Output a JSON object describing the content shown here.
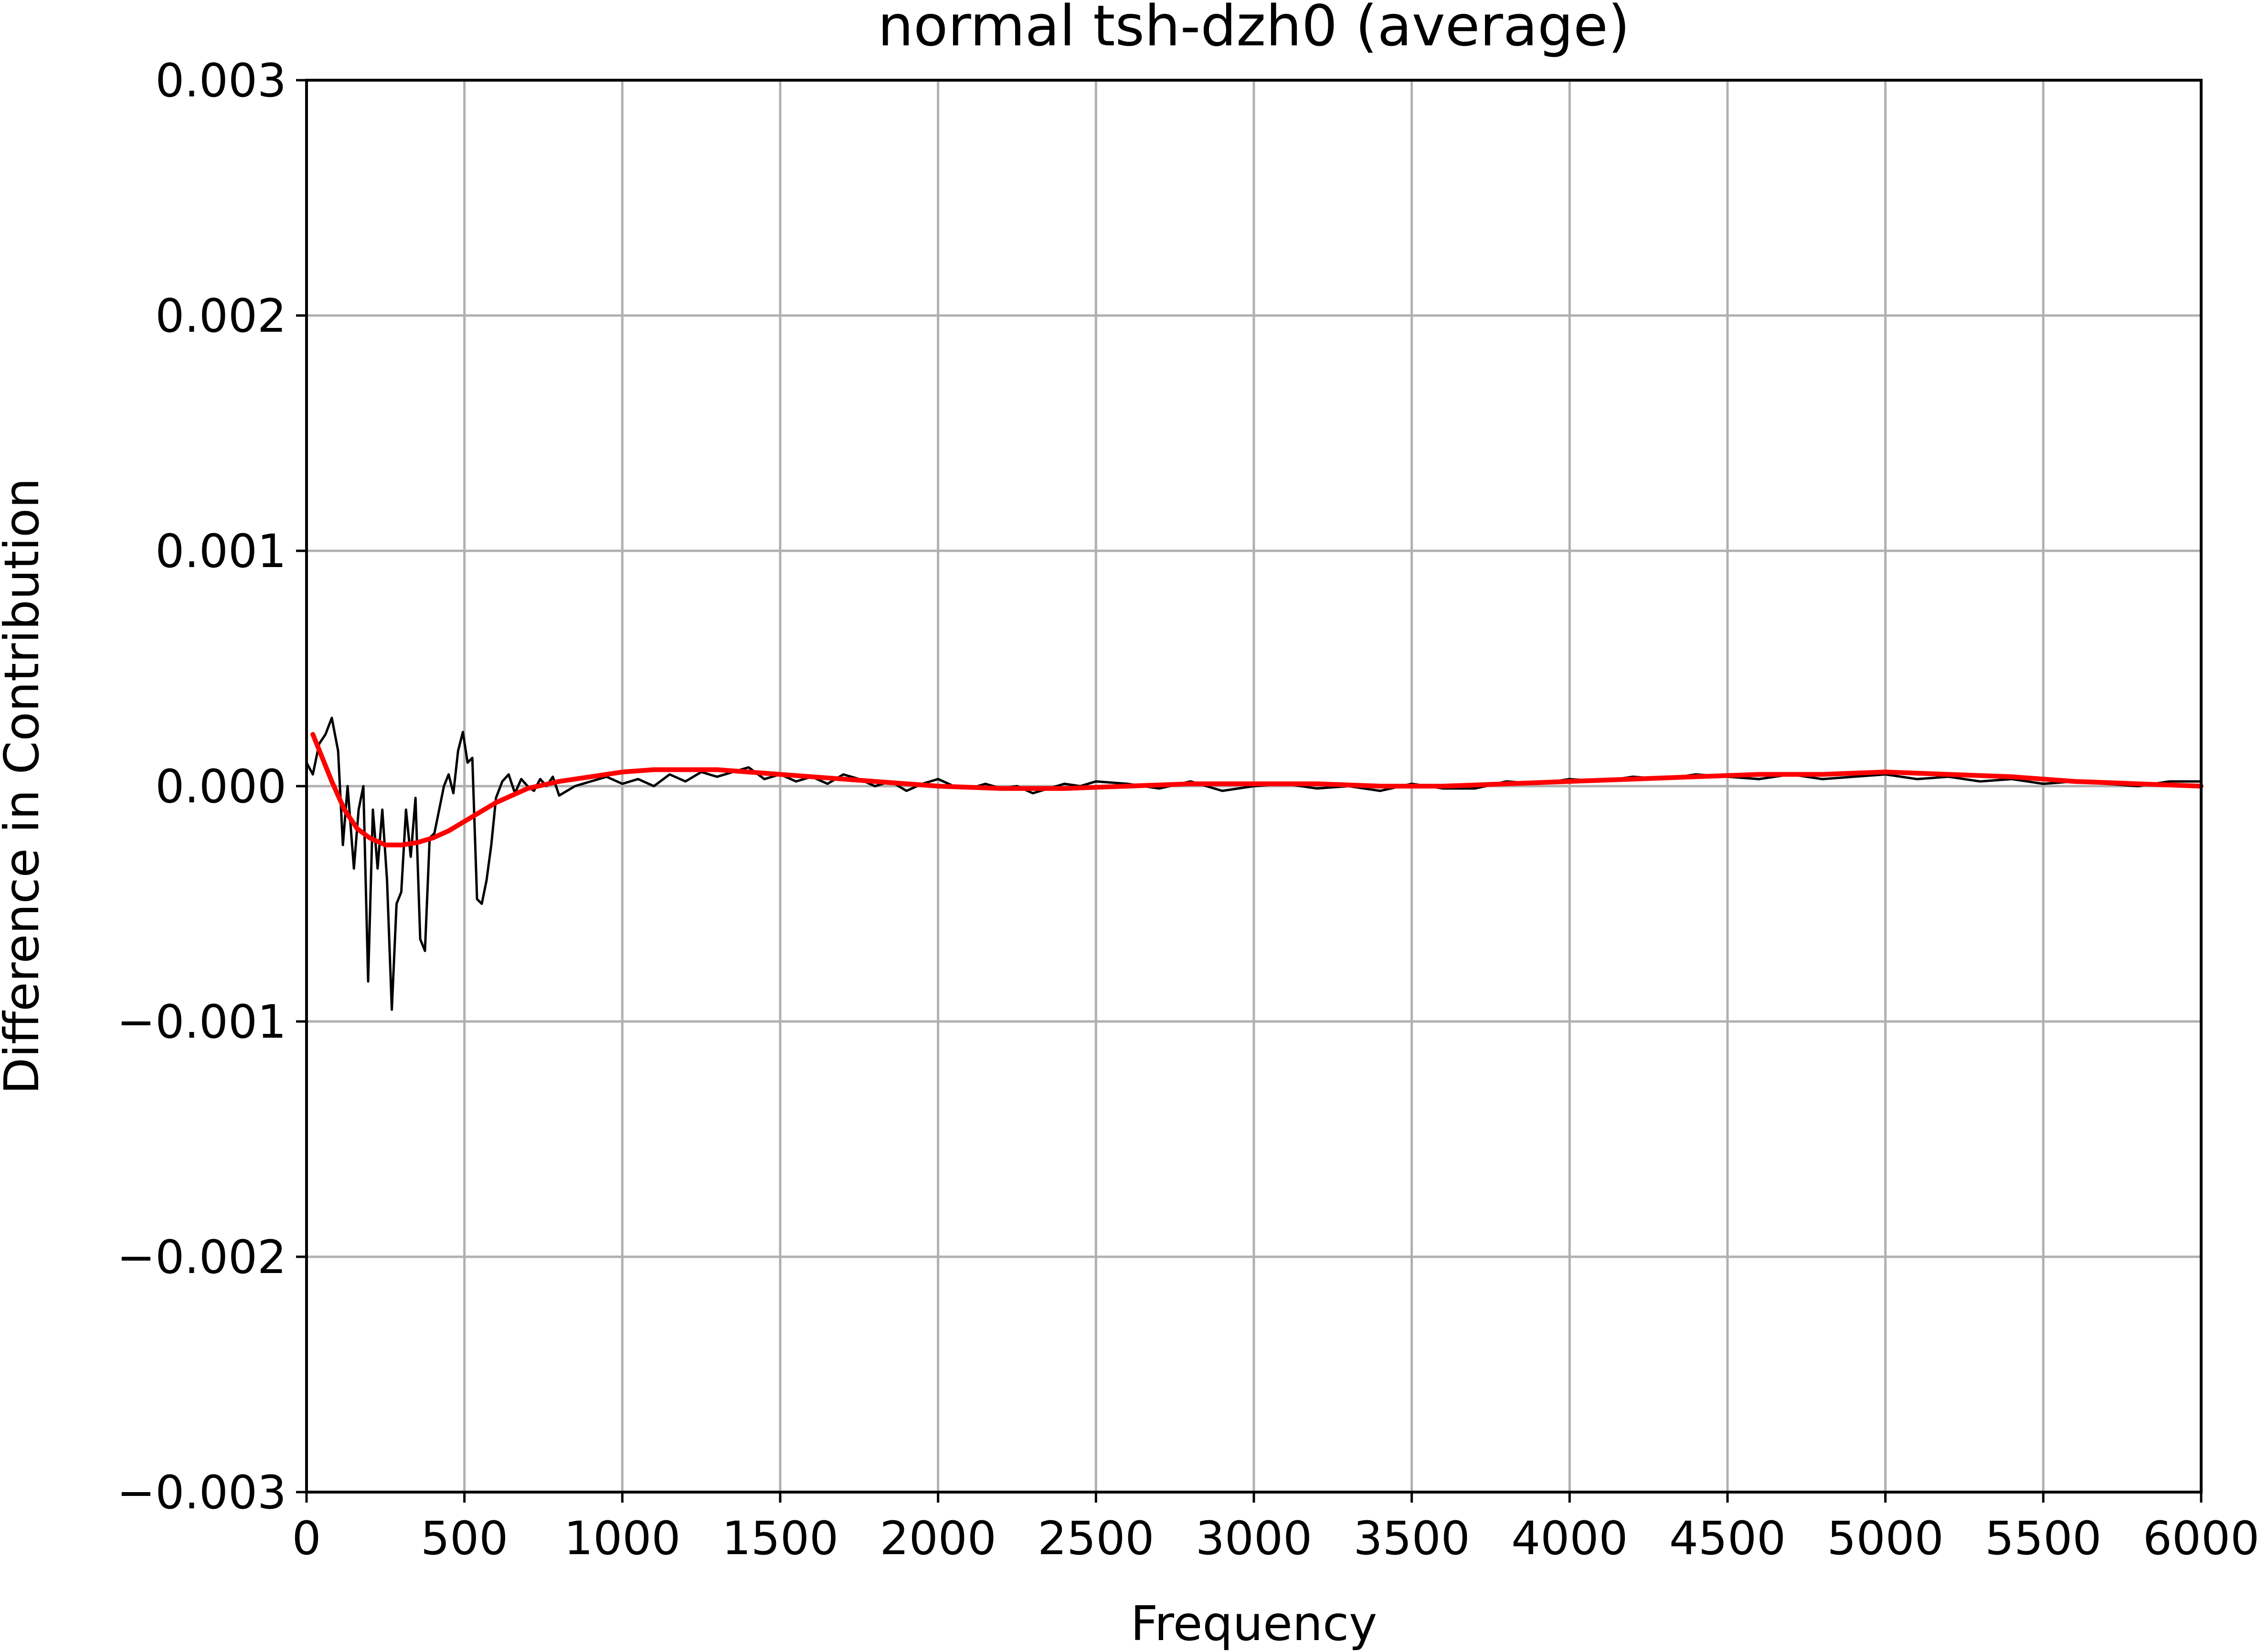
{
  "chart_data": {
    "type": "line",
    "title": "normal tsh-dzh0 (average)",
    "xlabel": "Frequency",
    "ylabel": "Difference in Contribution",
    "xlim": [
      0,
      6000
    ],
    "ylim": [
      -0.003,
      0.003
    ],
    "xticks": [
      0,
      500,
      1000,
      1500,
      2000,
      2500,
      3000,
      3500,
      4000,
      4500,
      5000,
      5500,
      6000
    ],
    "xtick_labels": [
      "0",
      "500",
      "1000",
      "1500",
      "2000",
      "2500",
      "3000",
      "3500",
      "4000",
      "4500",
      "5000",
      "5500",
      "6000"
    ],
    "yticks": [
      -0.003,
      -0.002,
      -0.001,
      0.0,
      0.001,
      0.002,
      0.003
    ],
    "ytick_labels": [
      "−0.003",
      "−0.002",
      "−0.001",
      "0.000",
      "0.001",
      "0.002",
      "0.003"
    ],
    "grid": true,
    "legend": "none",
    "series": [
      {
        "color": "#000000",
        "x": [
          0,
          20,
          40,
          60,
          80,
          100,
          115,
          130,
          150,
          165,
          180,
          195,
          210,
          225,
          240,
          255,
          270,
          285,
          300,
          315,
          330,
          345,
          360,
          375,
          390,
          405,
          420,
          435,
          450,
          465,
          480,
          495,
          510,
          525,
          540,
          555,
          570,
          585,
          600,
          620,
          640,
          660,
          680,
          700,
          720,
          740,
          760,
          780,
          800,
          850,
          900,
          950,
          1000,
          1050,
          1100,
          1150,
          1200,
          1250,
          1300,
          1350,
          1400,
          1450,
          1500,
          1550,
          1600,
          1650,
          1700,
          1750,
          1800,
          1850,
          1900,
          1950,
          2000,
          2050,
          2100,
          2150,
          2200,
          2250,
          2300,
          2350,
          2400,
          2450,
          2500,
          2600,
          2700,
          2800,
          2900,
          3000,
          3100,
          3200,
          3300,
          3400,
          3500,
          3600,
          3700,
          3800,
          3900,
          4000,
          4100,
          4200,
          4300,
          4400,
          4500,
          4600,
          4700,
          4800,
          4900,
          5000,
          5100,
          5200,
          5300,
          5400,
          5500,
          5600,
          5700,
          5800,
          5900,
          6000
        ],
        "y": [
          0.0001,
          5e-05,
          0.00018,
          0.00022,
          0.00029,
          0.00015,
          -0.00025,
          0.0,
          -0.00035,
          -0.0001,
          0.0,
          -0.00083,
          -0.0001,
          -0.00035,
          -0.0001,
          -0.0004,
          -0.00095,
          -0.0005,
          -0.00045,
          -0.0001,
          -0.0003,
          -5e-05,
          -0.00065,
          -0.0007,
          -0.00022,
          -0.0002,
          -0.0001,
          0.0,
          5e-05,
          -3e-05,
          0.00015,
          0.00023,
          0.0001,
          0.00012,
          -0.00048,
          -0.0005,
          -0.0004,
          -0.00025,
          -5e-05,
          2e-05,
          5e-05,
          -3e-05,
          3e-05,
          0.0,
          -2e-05,
          3e-05,
          0.0,
          4e-05,
          -4e-05,
          0.0,
          2e-05,
          4e-05,
          1e-05,
          3e-05,
          0.0,
          5e-05,
          2e-05,
          6e-05,
          4e-05,
          6e-05,
          8e-05,
          3e-05,
          5e-05,
          2e-05,
          4e-05,
          1e-05,
          5e-05,
          3e-05,
          0.0,
          2e-05,
          -2e-05,
          1e-05,
          3e-05,
          0.0,
          -1e-05,
          1e-05,
          -1e-05,
          0.0,
          -3e-05,
          -1e-05,
          1e-05,
          0.0,
          2e-05,
          1e-05,
          -1e-05,
          2e-05,
          -2e-05,
          0.0,
          1e-05,
          -1e-05,
          0.0,
          -2e-05,
          1e-05,
          -1e-05,
          -1e-05,
          2e-05,
          1e-05,
          3e-05,
          2e-05,
          4e-05,
          3e-05,
          5e-05,
          4e-05,
          3e-05,
          5e-05,
          3e-05,
          4e-05,
          5e-05,
          3e-05,
          4e-05,
          2e-05,
          3e-05,
          1e-05,
          2e-05,
          1e-05,
          0.0,
          2e-05,
          2e-05
        ]
      },
      {
        "color": "#ff0000",
        "x": [
          20,
          50,
          80,
          120,
          160,
          200,
          250,
          300,
          350,
          400,
          450,
          500,
          550,
          600,
          650,
          700,
          800,
          900,
          1000,
          1100,
          1200,
          1300,
          1400,
          1500,
          1600,
          1800,
          2000,
          2200,
          2400,
          2600,
          2800,
          3000,
          3200,
          3400,
          3600,
          3800,
          4000,
          4200,
          4400,
          4600,
          4800,
          5000,
          5200,
          5400,
          5600,
          5800,
          6000
        ],
        "y": [
          0.00022,
          0.00012,
          2e-05,
          -0.0001,
          -0.00018,
          -0.00022,
          -0.00025,
          -0.00025,
          -0.00024,
          -0.00022,
          -0.00019,
          -0.00015,
          -0.00011,
          -7e-05,
          -4e-05,
          -1e-05,
          2e-05,
          4e-05,
          6e-05,
          7e-05,
          7e-05,
          7e-05,
          6e-05,
          5e-05,
          4e-05,
          2e-05,
          0.0,
          -1e-05,
          -1e-05,
          0.0,
          1e-05,
          1e-05,
          1e-05,
          0.0,
          0.0,
          1e-05,
          2e-05,
          3e-05,
          4e-05,
          5e-05,
          5e-05,
          6e-05,
          5e-05,
          4e-05,
          2e-05,
          1e-05,
          0.0
        ]
      }
    ]
  }
}
